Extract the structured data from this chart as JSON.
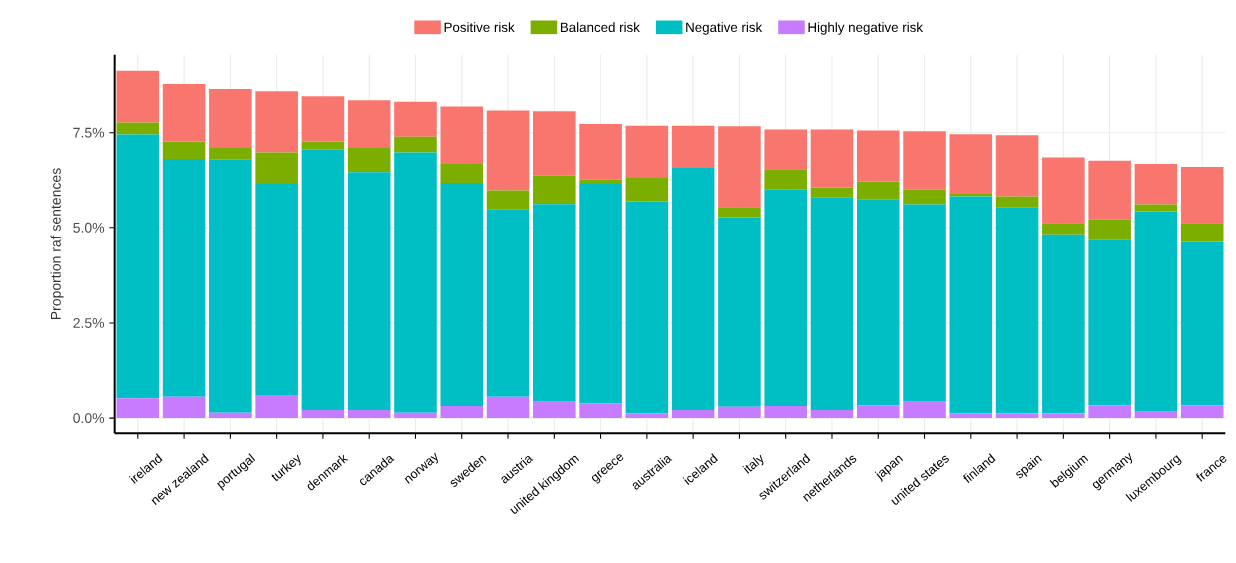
{
  "chart_data": {
    "type": "bar",
    "stacked": true,
    "ylabel": "Proportion raf sentences",
    "categories": [
      "ireland",
      "new zealand",
      "portugal",
      "turkey",
      "denmark",
      "canada",
      "norway",
      "sweden",
      "austria",
      "united kingdom",
      "greece",
      "australia",
      "iceland",
      "italy",
      "switzerland",
      "netherlands",
      "japan",
      "united states",
      "finland",
      "spain",
      "belgium",
      "germany",
      "luxembourg",
      "france"
    ],
    "series": [
      {
        "name": "Highly negative risk",
        "color": "#c77cff",
        "values": [
          0.52,
          0.56,
          0.14,
          0.61,
          0.21,
          0.21,
          0.14,
          0.32,
          0.56,
          0.43,
          0.39,
          0.12,
          0.21,
          0.3,
          0.32,
          0.21,
          0.34,
          0.43,
          0.12,
          0.12,
          0.12,
          0.34,
          0.17,
          0.34
        ]
      },
      {
        "name": "Negative risk",
        "color": "#00bfc4",
        "values": [
          6.93,
          6.25,
          6.65,
          5.54,
          6.84,
          6.25,
          6.84,
          5.86,
          4.93,
          5.19,
          5.76,
          5.57,
          6.36,
          4.97,
          5.68,
          5.59,
          5.41,
          5.18,
          5.7,
          5.42,
          4.7,
          4.36,
          5.26,
          4.3
        ]
      },
      {
        "name": "Balanced risk",
        "color": "#7cae00",
        "values": [
          0.32,
          0.46,
          0.31,
          0.83,
          0.22,
          0.64,
          0.41,
          0.5,
          0.49,
          0.75,
          0.11,
          0.62,
          0,
          0.27,
          0.54,
          0.26,
          0.47,
          0.39,
          0.07,
          0.28,
          0.3,
          0.51,
          0.18,
          0.48
        ]
      },
      {
        "name": "Positive risk",
        "color": "#f8766d",
        "values": [
          1.36,
          1.51,
          1.55,
          1.61,
          1.19,
          1.25,
          0.92,
          1.51,
          2.1,
          1.69,
          1.47,
          1.37,
          1.11,
          2.13,
          1.04,
          1.52,
          1.34,
          1.54,
          1.57,
          1.61,
          1.73,
          1.55,
          1.07,
          1.48
        ]
      }
    ],
    "ylim": [
      -0.4,
      9.55
    ],
    "yticks": [
      {
        "value": 0,
        "label": "0.0%"
      },
      {
        "value": 2.5,
        "label": "2.5%"
      },
      {
        "value": 5,
        "label": "5.0%"
      },
      {
        "value": 7.5,
        "label": "7.5%"
      }
    ],
    "grid": true,
    "legend": "top"
  }
}
